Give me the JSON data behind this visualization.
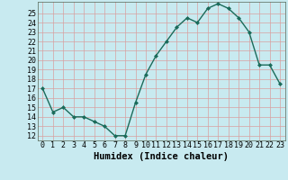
{
  "x": [
    0,
    1,
    2,
    3,
    4,
    5,
    6,
    7,
    8,
    9,
    10,
    11,
    12,
    13,
    14,
    15,
    16,
    17,
    18,
    19,
    20,
    21,
    22,
    23
  ],
  "y": [
    17,
    14.5,
    15,
    14,
    14,
    13.5,
    13,
    12,
    12,
    15.5,
    18.5,
    20.5,
    22,
    23.5,
    24.5,
    24,
    25.5,
    26,
    25.5,
    24.5,
    23,
    19.5,
    19.5,
    17.5
  ],
  "line_color": "#1a6b5a",
  "marker": "D",
  "marker_size": 2.0,
  "bg_color": "#c8eaf0",
  "grid_color": "#d8a0a0",
  "xlabel": "Humidex (Indice chaleur)",
  "xlim": [
    -0.5,
    23.5
  ],
  "ylim": [
    11.5,
    26.2
  ],
  "yticks": [
    12,
    13,
    14,
    15,
    16,
    17,
    18,
    19,
    20,
    21,
    22,
    23,
    24,
    25
  ],
  "xticks": [
    0,
    1,
    2,
    3,
    4,
    5,
    6,
    7,
    8,
    9,
    10,
    11,
    12,
    13,
    14,
    15,
    16,
    17,
    18,
    19,
    20,
    21,
    22,
    23
  ],
  "xlabel_fontsize": 7.5,
  "tick_fontsize": 6.0,
  "linewidth": 1.0
}
